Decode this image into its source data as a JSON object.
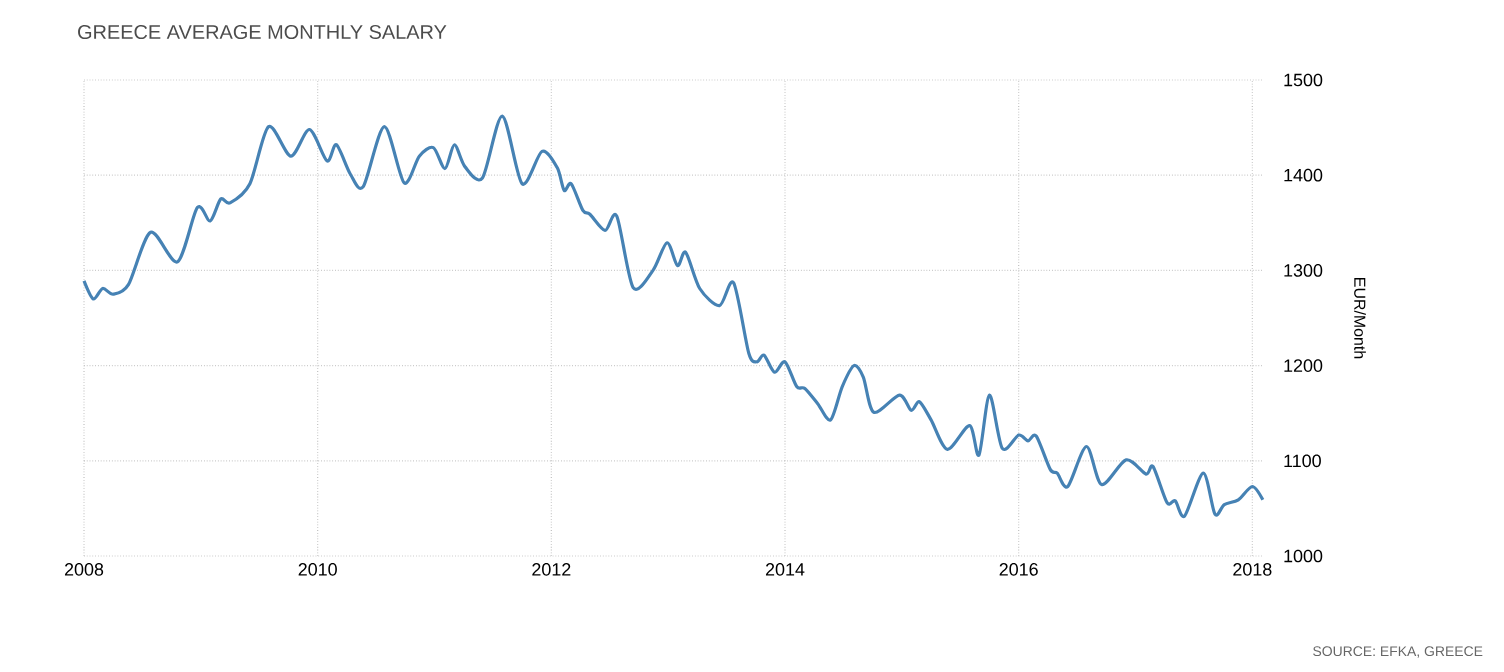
{
  "chart_data": {
    "type": "line",
    "title": "GREECE AVERAGE MONTHLY SALARY",
    "ylabel": "EUR/Month",
    "annotations": [
      "SOURCE: EFKA, GREECE"
    ],
    "x": [
      2008.0,
      2008.08,
      2008.16,
      2008.25,
      2008.38,
      2008.57,
      2008.8,
      2008.97,
      2009.08,
      2009.17,
      2009.25,
      2009.42,
      2009.58,
      2009.77,
      2009.93,
      2010.08,
      2010.16,
      2010.28,
      2010.39,
      2010.57,
      2010.74,
      2010.87,
      2010.99,
      2011.09,
      2011.17,
      2011.26,
      2011.41,
      2011.58,
      2011.75,
      2011.92,
      2012.05,
      2012.11,
      2012.17,
      2012.27,
      2012.33,
      2012.46,
      2012.56,
      2012.7,
      2012.87,
      2012.99,
      2013.08,
      2013.15,
      2013.27,
      2013.44,
      2013.56,
      2013.69,
      2013.76,
      2013.82,
      2013.91,
      2014.0,
      2014.1,
      2014.17,
      2014.28,
      2014.39,
      2014.49,
      2014.59,
      2014.67,
      2014.76,
      2014.98,
      2015.08,
      2015.15,
      2015.25,
      2015.39,
      2015.58,
      2015.66,
      2015.75,
      2015.86,
      2016.0,
      2016.08,
      2016.15,
      2016.27,
      2016.33,
      2016.42,
      2016.58,
      2016.71,
      2016.92,
      2017.09,
      2017.15,
      2017.27,
      2017.34,
      2017.42,
      2017.58,
      2017.68,
      2017.76,
      2017.88,
      2018.0,
      2018.09
    ],
    "series": [
      {
        "color": "#4682b4",
        "values": [
          1289,
          1270,
          1281,
          1275,
          1285,
          1340,
          1309,
          1366,
          1352,
          1375,
          1371,
          1391,
          1451,
          1420,
          1448,
          1415,
          1432,
          1401,
          1388,
          1451,
          1392,
          1420,
          1429,
          1407,
          1432,
          1409,
          1397,
          1462,
          1391,
          1425,
          1408,
          1384,
          1391,
          1363,
          1359,
          1342,
          1357,
          1282,
          1300,
          1329,
          1305,
          1319,
          1281,
          1263,
          1287,
          1213,
          1204,
          1211,
          1193,
          1204,
          1178,
          1176,
          1160,
          1143,
          1178,
          1200,
          1188,
          1151,
          1169,
          1153,
          1162,
          1143,
          1112,
          1137,
          1106,
          1169,
          1113,
          1127,
          1121,
          1126,
          1091,
          1087,
          1073,
          1115,
          1075,
          1101,
          1086,
          1094,
          1056,
          1058,
          1042,
          1087,
          1044,
          1054,
          1059,
          1073,
          1059
        ]
      }
    ],
    "xlim": [
      2008,
      2018.1
    ],
    "ylim": [
      1000,
      1500
    ],
    "xticks": [
      2008,
      2010,
      2012,
      2014,
      2016,
      2018
    ],
    "yticks": [
      1000,
      1100,
      1200,
      1300,
      1400,
      1500
    ],
    "grid": true,
    "marker": "none",
    "line_style": "solid"
  }
}
